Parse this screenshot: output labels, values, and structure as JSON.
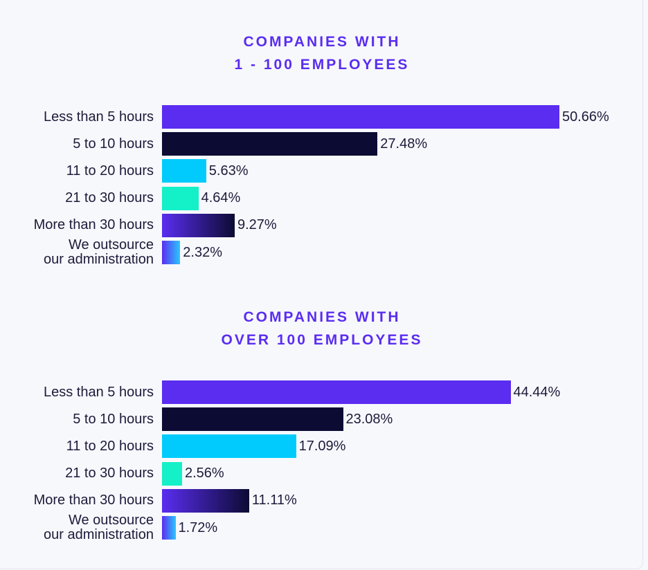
{
  "chart_data": [
    {
      "type": "bar",
      "orientation": "horizontal",
      "title": [
        "COMPANIES WITH",
        "1 - 100 EMPLOYEES"
      ],
      "categories": [
        "Less than 5 hours",
        "5 to 10 hours",
        "11 to 20 hours",
        "21 to 30 hours",
        "More than 30 hours",
        "We outsource our administration"
      ],
      "values": [
        50.66,
        27.48,
        5.63,
        4.64,
        9.27,
        2.32
      ],
      "value_labels": [
        "50.66%",
        "27.48%",
        "5.63%",
        "4.64%",
        "9.27%",
        "2.32%"
      ],
      "colors": [
        "#5a2df0",
        "#0c0b33",
        "#00cbfc",
        "#14f0c8",
        "gradient:#5a2df0-#0c0b33",
        "gradient:#5a2df0-#2bc6ff"
      ],
      "xlim": [
        0,
        100
      ],
      "grid": false
    },
    {
      "type": "bar",
      "orientation": "horizontal",
      "title": [
        "COMPANIES WITH",
        "OVER 100 EMPLOYEES"
      ],
      "categories": [
        "Less than 5 hours",
        "5 to 10 hours",
        "11 to 20 hours",
        "21 to 30 hours",
        "More than 30 hours",
        "We outsource our administration"
      ],
      "values": [
        44.44,
        23.08,
        17.09,
        2.56,
        11.11,
        1.72
      ],
      "value_labels": [
        "44.44%",
        "23.08%",
        "17.09%",
        "2.56%",
        "11.11%",
        "1.72%"
      ],
      "colors": [
        "#5a2df0",
        "#0c0b33",
        "#00cbfc",
        "#14f0c8",
        "gradient:#5a2df0-#0c0b33",
        "gradient:#5a2df0-#2bc6ff"
      ],
      "xlim": [
        0,
        100
      ],
      "grid": false
    }
  ],
  "category_lines": {
    "We outsource our administration": [
      "We outsource",
      "our administration"
    ]
  }
}
